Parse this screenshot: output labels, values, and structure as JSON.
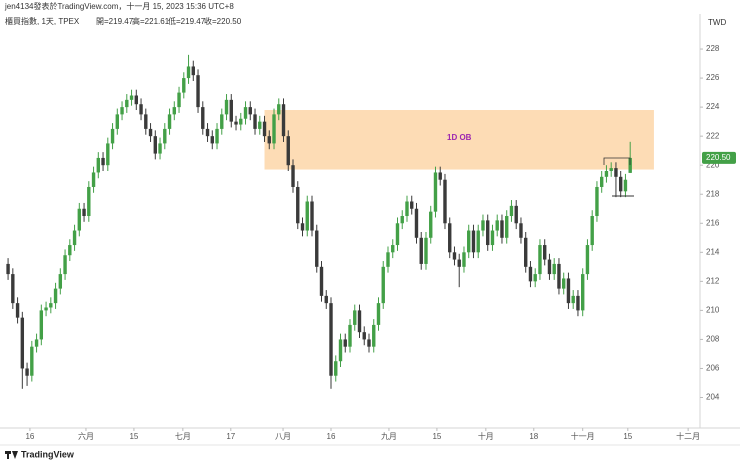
{
  "header": {
    "author_line": "jen4134發表於TradingView.com，十一月 15, 2023 15:36 UTC+8",
    "symbol": "櫃買指數, 1天, TPEX",
    "open": "開=219.47",
    "high": "高=221.61",
    "low": "低=219.47",
    "close": "收=220.50",
    "currency": "TWD",
    "brand": "TradingView"
  },
  "chart_data": {
    "type": "candlestick",
    "up_color": "#43a047",
    "down_color": "#3a3a3a",
    "ylim": [
      201.9,
      230
    ],
    "yticks": [
      204,
      206,
      208,
      210,
      212,
      214,
      216,
      218,
      220,
      222,
      224,
      226,
      228
    ],
    "xlim": [
      -1.7,
      145.7
    ],
    "xticks": [
      {
        "value": 4.6,
        "label": "16"
      },
      {
        "value": 16.4,
        "label": "六月"
      },
      {
        "value": 26.5,
        "label": "15"
      },
      {
        "value": 36.8,
        "label": "七月"
      },
      {
        "value": 46.9,
        "label": "17"
      },
      {
        "value": 57.9,
        "label": "八月"
      },
      {
        "value": 68,
        "label": "16"
      },
      {
        "value": 80.2,
        "label": "九月"
      },
      {
        "value": 90.3,
        "label": "15"
      },
      {
        "value": 100.6,
        "label": "十月"
      },
      {
        "value": 110.7,
        "label": "18"
      },
      {
        "value": 121,
        "label": "十一月"
      },
      {
        "value": 130.5,
        "label": "15"
      },
      {
        "value": 143.2,
        "label": "十二月"
      }
    ],
    "open": [
      213.2,
      212.5,
      210.5,
      209.5,
      206,
      205.5,
      207.5,
      208,
      210,
      210.2,
      210.5,
      211.5,
      212.5,
      213.8,
      214.5,
      215.5,
      217,
      216.5,
      218.5,
      219.5,
      220.5,
      220,
      221.5,
      222.5,
      223.5,
      224,
      224.5,
      224.8,
      224.2,
      223.5,
      222.5,
      222,
      220.8,
      221.5,
      222.5,
      223.5,
      224,
      225,
      226,
      226.8,
      226.2,
      224,
      222.5,
      222,
      221.5,
      222.5,
      223.5,
      224.5,
      223,
      222.8,
      223.2,
      224,
      223.5,
      222.5,
      223,
      222,
      221.5,
      223.5,
      224.2,
      222,
      220,
      218.5,
      216,
      215.5,
      217.5,
      215.5,
      213,
      211,
      210.5,
      205.5,
      206.5,
      208,
      207.5,
      209,
      210,
      208.5,
      208,
      207.5,
      209,
      210.5,
      213,
      214,
      214.5,
      216,
      216.5,
      217.5,
      217,
      215,
      213.2,
      215,
      216.8,
      219.5,
      219,
      216,
      214,
      213.5,
      213,
      214,
      215.5,
      214,
      215.5,
      216.2,
      214.5,
      215.5,
      216.2,
      215,
      216.5,
      217.2,
      216,
      215,
      213,
      212,
      212.5,
      214.5,
      213.5,
      212.5,
      213.2,
      211.5,
      212.2,
      210.5,
      211,
      210,
      212.5,
      214.5,
      216.5,
      218.5,
      219.2,
      219.6,
      219.8,
      219.2,
      218.2,
      219.47
    ],
    "high": [
      213.6,
      212.9,
      210.9,
      209.9,
      206.4,
      207.9,
      208.4,
      210.4,
      210.6,
      210.9,
      211.9,
      212.9,
      214.2,
      214.9,
      215.9,
      217.4,
      217.4,
      218.9,
      219.9,
      220.9,
      220.9,
      221.9,
      222.9,
      223.9,
      224.4,
      224.9,
      225.2,
      225.2,
      224.6,
      223.9,
      222.9,
      222.4,
      221.9,
      222.9,
      223.9,
      224.4,
      225.4,
      226.4,
      227.6,
      227.2,
      226.6,
      224.4,
      222.9,
      222.4,
      222.9,
      223.9,
      224.9,
      224.9,
      223.4,
      223.6,
      224.4,
      224.4,
      223.9,
      223.4,
      223.4,
      222.4,
      223.9,
      224.6,
      224.6,
      222.4,
      220.4,
      218.9,
      216.4,
      217.9,
      217.9,
      215.9,
      213.4,
      211.4,
      210.9,
      206.9,
      208.4,
      208.4,
      209.4,
      210.4,
      210.4,
      208.9,
      208.4,
      209.4,
      210.9,
      213.4,
      214.4,
      214.9,
      216.4,
      216.9,
      217.9,
      217.9,
      217.4,
      215.4,
      215.4,
      217.2,
      219.9,
      219.9,
      219.4,
      216.4,
      214.4,
      213.9,
      214.4,
      215.9,
      215.9,
      215.9,
      216.6,
      216.6,
      215.9,
      216.6,
      216.6,
      216.9,
      217.6,
      217.6,
      216.4,
      215.4,
      213.4,
      212.9,
      214.9,
      214.9,
      213.9,
      213.6,
      213.6,
      212.6,
      212.6,
      211.4,
      211.4,
      212.9,
      214.9,
      216.9,
      218.9,
      219.6,
      220,
      220.2,
      220.2,
      219.6,
      219.4,
      221.61
    ],
    "low": [
      212.1,
      210.1,
      209.1,
      204.6,
      204.8,
      205.1,
      207.1,
      207.6,
      209.6,
      209.8,
      210.1,
      211.1,
      212.1,
      213.4,
      214.1,
      215.1,
      216.1,
      216.1,
      218.1,
      219.1,
      219.6,
      219.6,
      221.1,
      222.1,
      223.1,
      223.6,
      224.1,
      223.8,
      223.1,
      222.1,
      221.6,
      220.4,
      220.4,
      221.1,
      222.1,
      223.1,
      223.6,
      224.6,
      225.6,
      225.8,
      223.6,
      222.1,
      221.6,
      221.1,
      221.1,
      222.1,
      223.1,
      222.6,
      222.4,
      222.4,
      222.8,
      223.1,
      222.1,
      222.1,
      221.6,
      221.1,
      221.1,
      223.1,
      221.6,
      219.6,
      218.1,
      215.6,
      215.1,
      215.1,
      215.1,
      212.6,
      210.6,
      210.1,
      204.6,
      205.1,
      206.1,
      207.1,
      207.1,
      208.6,
      208.1,
      207.6,
      207.1,
      207.1,
      208.6,
      210.1,
      212.6,
      213.6,
      214.1,
      215.6,
      216.1,
      216.6,
      214.6,
      212.8,
      212.8,
      214.6,
      216.4,
      218.6,
      215.6,
      213.6,
      213.1,
      211.6,
      212.6,
      213.6,
      213.6,
      213.6,
      215.1,
      214.1,
      214.1,
      215.1,
      214.6,
      214.6,
      216.1,
      215.6,
      214.6,
      212.6,
      211.6,
      211.6,
      212.1,
      213.1,
      212.1,
      212.1,
      211.1,
      211.1,
      210.1,
      210.1,
      209.6,
      209.6,
      212.1,
      214.1,
      216.1,
      218.1,
      218.8,
      219.2,
      217.8,
      217.8,
      217.8,
      219.47
    ],
    "close": [
      212.5,
      210.5,
      209.5,
      206,
      205.5,
      207.5,
      208,
      210,
      210.2,
      210.5,
      211.5,
      212.5,
      213.8,
      214.5,
      215.5,
      217,
      216.5,
      218.5,
      219.5,
      220.5,
      220,
      221.5,
      222.5,
      223.5,
      224,
      224.5,
      224.8,
      224.2,
      223.5,
      222.5,
      222,
      220.8,
      221.5,
      222.5,
      223.5,
      224,
      225,
      226,
      226.8,
      226.2,
      224,
      222.5,
      222,
      221.5,
      222.5,
      223.5,
      224.5,
      223,
      222.8,
      223.2,
      224,
      223.5,
      222.5,
      223,
      222,
      221.5,
      223.5,
      224.2,
      222,
      220,
      218.5,
      216,
      215.5,
      217.5,
      215.5,
      213,
      211,
      210.5,
      205.5,
      206.5,
      208,
      207.5,
      209,
      210,
      208.5,
      208,
      207.5,
      209,
      210.5,
      213,
      214,
      214.5,
      216,
      216.5,
      217.5,
      217,
      215,
      213.2,
      215,
      216.8,
      219.5,
      219,
      216,
      214,
      213.5,
      213,
      214,
      215.5,
      214,
      215.5,
      216.2,
      214.5,
      215.5,
      216.2,
      215,
      216.5,
      217.2,
      216,
      215,
      213,
      212,
      212.5,
      214.5,
      213.5,
      212.5,
      213.2,
      211.5,
      212.2,
      210.5,
      211,
      210,
      212.5,
      214.5,
      216.5,
      218.5,
      219.2,
      219.6,
      219.8,
      219.2,
      218.2,
      219,
      220.5
    ],
    "zone": {
      "label": "1D OB",
      "low": 219.7,
      "high": 223.8,
      "start": 54,
      "end": 136,
      "color": "#fddcb5",
      "label_color": "#9c27b0"
    },
    "last_price": {
      "value": 220.5,
      "label": "220.50",
      "color": "#43a047"
    }
  }
}
